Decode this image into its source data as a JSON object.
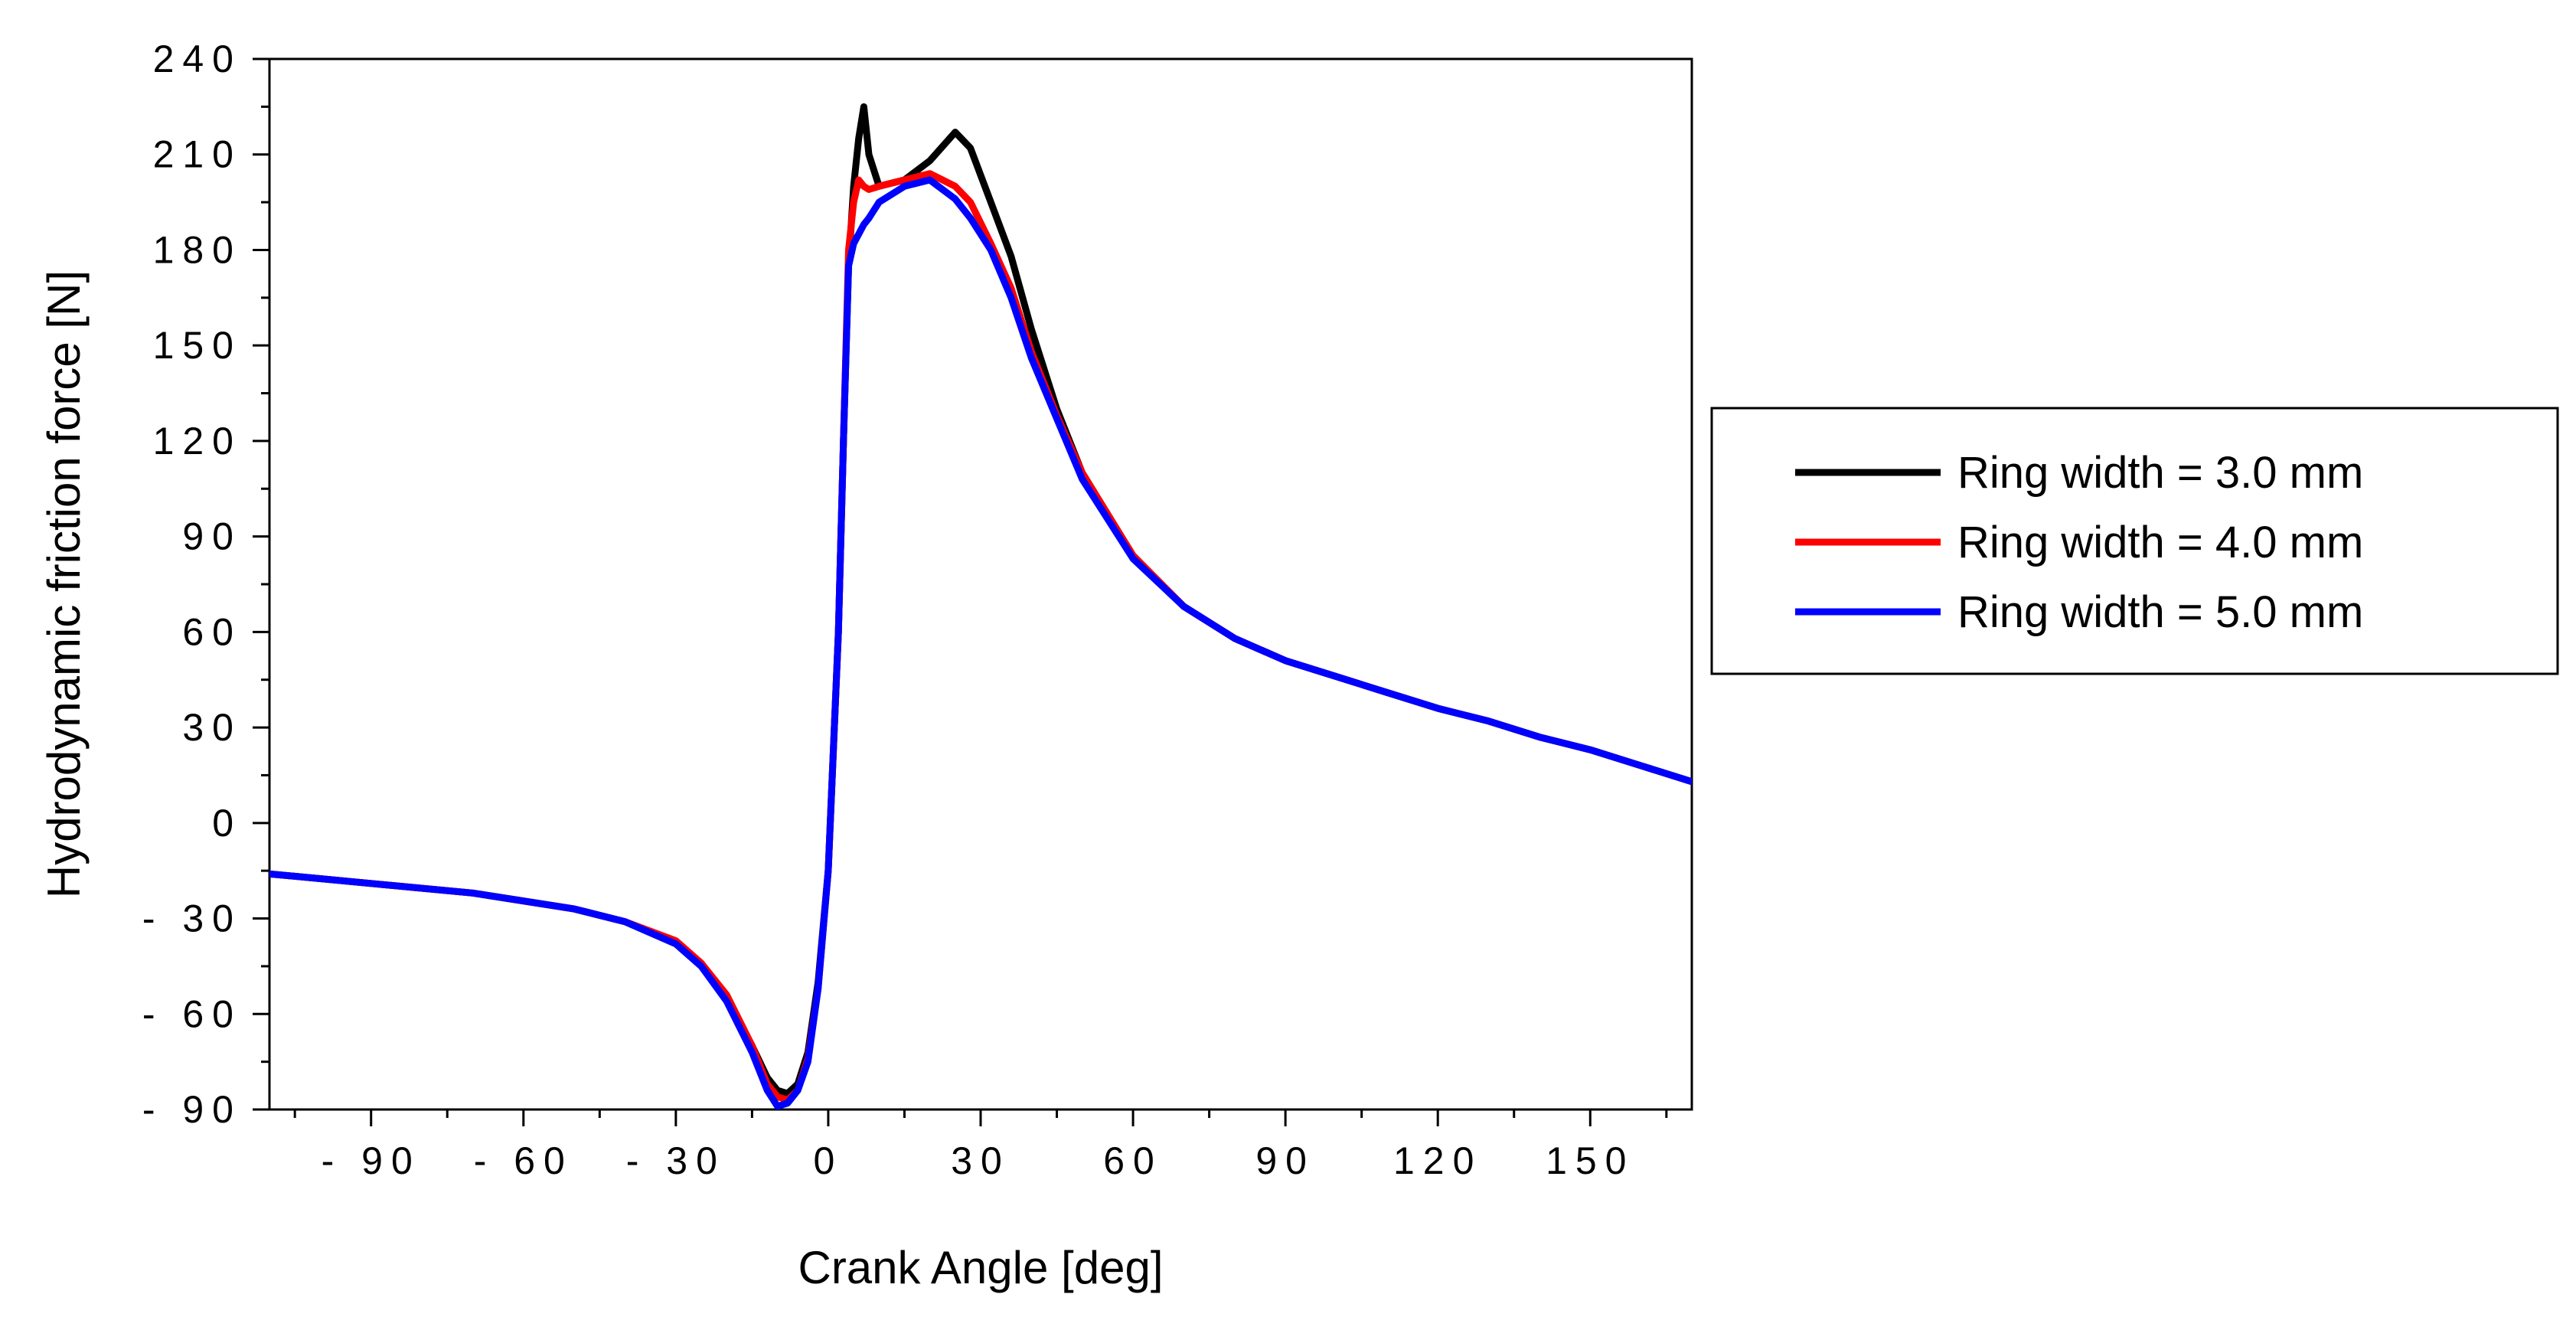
{
  "chart_data": {
    "type": "line",
    "xlabel": "Crank Angle [deg]",
    "ylabel": "Hydrodynamic friction force [N]",
    "xlim": [
      -110,
      170
    ],
    "ylim": [
      -90,
      240
    ],
    "x_ticks": [
      -90,
      -60,
      -30,
      0,
      30,
      60,
      90,
      120,
      150
    ],
    "x_tick_labels": [
      "- 90",
      "- 60",
      "- 30",
      "0",
      "30",
      "60",
      "90",
      "120",
      "150"
    ],
    "y_ticks": [
      -90,
      -60,
      -30,
      0,
      30,
      60,
      90,
      120,
      150,
      180,
      210,
      240
    ],
    "y_tick_labels": [
      "- 90",
      "- 60",
      "- 30",
      "0",
      "30",
      "60",
      "90",
      "120",
      "150",
      "180",
      "210",
      "240"
    ],
    "grid": false,
    "legend_position": "right",
    "series": [
      {
        "name": "Ring width = 3.0 mm",
        "color": "#000000",
        "x": [
          -110,
          -90,
          -70,
          -50,
          -40,
          -30,
          -25,
          -20,
          -15,
          -12,
          -10,
          -8,
          -6,
          -4,
          -2,
          0,
          2,
          3,
          4,
          5,
          6,
          7,
          8,
          10,
          15,
          20,
          25,
          28,
          32,
          36,
          40,
          45,
          50,
          60,
          70,
          80,
          90,
          100,
          110,
          120,
          130,
          140,
          150,
          160,
          170
        ],
        "y": [
          -16,
          -19,
          -22,
          -27,
          -31,
          -38,
          -45,
          -55,
          -70,
          -80,
          -84,
          -85,
          -82,
          -72,
          -50,
          -15,
          60,
          120,
          175,
          200,
          215,
          225,
          210,
          200,
          202,
          208,
          217,
          212,
          195,
          178,
          155,
          130,
          110,
          84,
          68,
          58,
          51,
          46,
          41,
          36,
          32,
          27,
          23,
          18,
          13
        ]
      },
      {
        "name": "Ring width = 4.0 mm",
        "color": "#ff0000",
        "x": [
          -110,
          -90,
          -70,
          -50,
          -40,
          -30,
          -25,
          -20,
          -15,
          -12,
          -10,
          -8,
          -6,
          -4,
          -2,
          0,
          2,
          3,
          4,
          5,
          6,
          7,
          8,
          10,
          15,
          20,
          25,
          28,
          32,
          36,
          40,
          45,
          50,
          60,
          70,
          80,
          90,
          100,
          110,
          120,
          130,
          140,
          150,
          160,
          170
        ],
        "y": [
          -16,
          -19,
          -22,
          -27,
          -31,
          -37,
          -44,
          -54,
          -70,
          -82,
          -86,
          -87,
          -84,
          -74,
          -52,
          -15,
          60,
          120,
          180,
          195,
          202,
          200,
          199,
          200,
          202,
          204,
          200,
          195,
          182,
          168,
          148,
          128,
          110,
          84,
          68,
          58,
          51,
          46,
          41,
          36,
          32,
          27,
          23,
          18,
          13
        ]
      },
      {
        "name": "Ring width = 5.0 mm",
        "color": "#0000ff",
        "x": [
          -110,
          -90,
          -70,
          -50,
          -40,
          -30,
          -25,
          -20,
          -15,
          -12,
          -10,
          -8,
          -6,
          -4,
          -2,
          0,
          2,
          3,
          4,
          5,
          6,
          7,
          8,
          10,
          15,
          20,
          25,
          28,
          32,
          36,
          40,
          45,
          50,
          60,
          70,
          80,
          90,
          100,
          110,
          120,
          130,
          140,
          150,
          160,
          170
        ],
        "y": [
          -16,
          -19,
          -22,
          -27,
          -31,
          -38,
          -45,
          -56,
          -72,
          -84,
          -89,
          -88,
          -84,
          -75,
          -52,
          -15,
          60,
          120,
          175,
          182,
          185,
          188,
          190,
          195,
          200,
          202,
          196,
          190,
          180,
          165,
          146,
          127,
          108,
          83,
          68,
          58,
          51,
          46,
          41,
          36,
          32,
          27,
          23,
          18,
          13
        ]
      }
    ]
  }
}
